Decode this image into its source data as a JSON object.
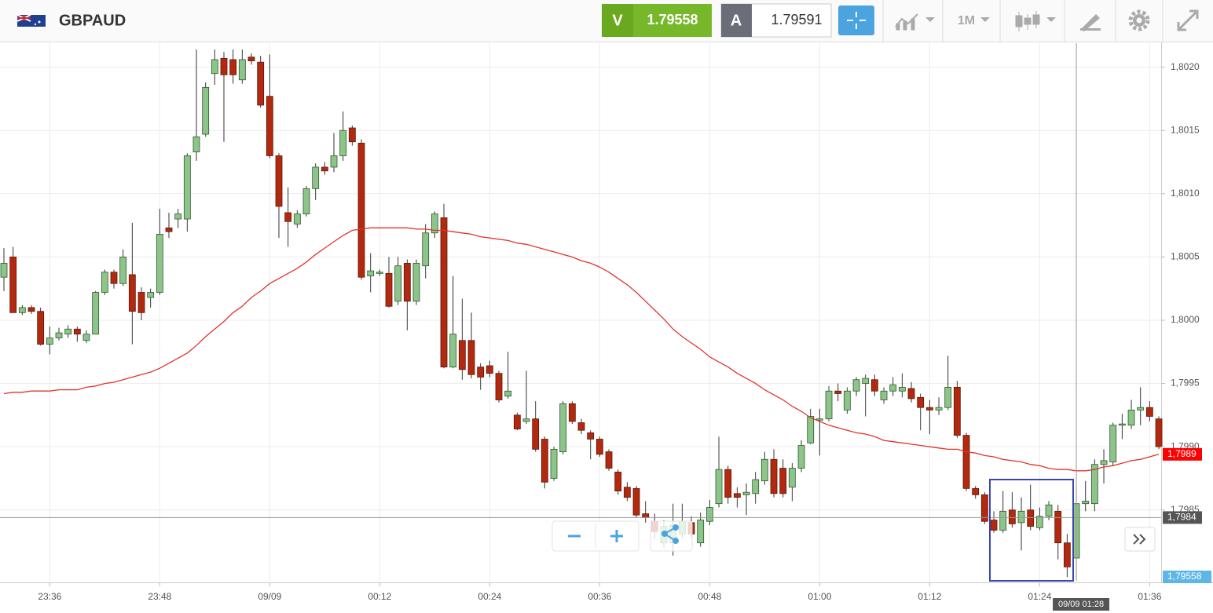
{
  "header": {
    "symbol": "GBPAUD",
    "sell_label": "V",
    "sell_price": "1.79558",
    "buy_label": "A",
    "buy_price": "1.79591",
    "timeframe": "1M"
  },
  "chart_data": {
    "type": "candlestick",
    "categories": [
      null,
      null,
      null,
      null,
      null,
      "23:36",
      null,
      null,
      null,
      null,
      null,
      null,
      null,
      null,
      null,
      null,
      null,
      "23:48",
      null,
      null,
      null,
      null,
      null,
      null,
      null,
      null,
      null,
      null,
      null,
      "09/09",
      null,
      null,
      null,
      null,
      null,
      null,
      null,
      null,
      null,
      null,
      null,
      "00:12",
      null,
      null,
      null,
      null,
      null,
      null,
      null,
      null,
      null,
      null,
      null,
      "00:24",
      null,
      null,
      null,
      null,
      null,
      null,
      null,
      null,
      null,
      null,
      null,
      "00:36",
      null,
      null,
      null,
      null,
      null,
      null,
      null,
      null,
      null,
      null,
      null,
      "00:48",
      null,
      null,
      null,
      null,
      null,
      null,
      null,
      null,
      null,
      null,
      null,
      "01:00",
      null,
      null,
      null,
      null,
      null,
      null,
      null,
      null,
      null,
      null,
      null,
      "01:12",
      null,
      null,
      null,
      null,
      null,
      null,
      null,
      null,
      null,
      null,
      null,
      "01:24",
      null,
      null,
      null,
      null,
      null,
      null,
      null,
      null,
      null,
      null,
      null,
      "01:36",
      null
    ],
    "open": [
      1.80034,
      1.8005,
      1.80006,
      1.8001,
      1.80007,
      1.79981,
      1.79986,
      1.79989,
      1.79993,
      1.79984,
      1.79989,
      1.80022,
      1.80038,
      1.80029,
      1.80036,
      1.80022,
      1.80018,
      1.80022,
      1.80073,
      1.8008,
      1.8008,
      1.80133,
      1.80147,
      1.80195,
      1.80207,
      1.80206,
      1.8019,
      1.80208,
      1.80204,
      1.80177,
      1.8013,
      1.80085,
      1.80076,
      1.80084,
      1.80104,
      1.80121,
      1.80121,
      1.8013,
      1.80152,
      1.8014,
      1.80035,
      1.80037,
      1.80037,
      1.80015,
      1.80045,
      1.80015,
      1.80043,
      1.80069,
      1.80081,
      1.79963,
      1.79984,
      1.79984,
      1.79963,
      1.79964,
      1.79958,
      1.7994,
      1.79925,
      1.7992,
      1.79922,
      1.79906,
      1.79875,
      1.79896,
      1.79934,
      1.79919,
      1.79911,
      1.79906,
      1.79896,
      1.7988,
      1.79868,
      1.79867,
      1.79847,
      1.79841,
      1.79824,
      1.79824,
      1.79831,
      1.7984,
      1.79824,
      1.79841,
      1.79855,
      1.79882,
      1.79863,
      1.79862,
      1.79863,
      1.79873,
      1.7989,
      1.79883,
      1.79868,
      1.79883,
      1.79903,
      1.79921,
      1.79922,
      1.79944,
      1.79929,
      1.79944,
      1.7995,
      1.79953,
      1.79937,
      1.79944,
      1.79944,
      1.79946,
      1.79939,
      1.79931,
      1.79929,
      1.79931,
      1.79947,
      1.79909,
      1.79867,
      1.79862,
      1.79842,
      1.79834,
      1.7985,
      1.7984,
      1.7985,
      1.79836,
      1.79845,
      1.79849,
      1.79824,
      1.79812,
      1.79855,
      1.79855,
      1.79886,
      1.79888,
      1.79917,
      1.79917,
      1.79929,
      1.79931,
      1.79922
    ],
    "high": [
      1.80057,
      1.80058,
      1.80012,
      1.80012,
      1.8001,
      1.79995,
      1.79994,
      1.79996,
      1.79995,
      1.79992,
      1.80023,
      1.8004,
      1.8004,
      1.80056,
      1.80077,
      1.80026,
      1.80025,
      1.80088,
      1.80085,
      1.80088,
      1.80132,
      1.80214,
      1.80188,
      1.80214,
      1.80212,
      1.80214,
      1.80214,
      1.80211,
      1.80209,
      1.8021,
      1.80132,
      1.80105,
      1.80087,
      1.80106,
      1.80124,
      1.80125,
      1.80148,
      1.80165,
      1.80154,
      1.80143,
      1.80053,
      1.8004,
      1.8005,
      1.8005,
      1.80048,
      1.80048,
      1.80076,
      1.80086,
      1.80092,
      1.80035,
      1.80017,
      1.80006,
      1.79966,
      1.79968,
      1.7996,
      1.79975,
      1.79927,
      1.7996,
      1.79936,
      1.79908,
      1.799,
      1.79936,
      1.79936,
      1.79922,
      1.79913,
      1.79908,
      1.79898,
      1.79882,
      1.79872,
      1.79869,
      1.79857,
      1.79847,
      1.79842,
      1.79855,
      1.79855,
      1.79845,
      1.79848,
      1.79858,
      1.79908,
      1.79885,
      1.79868,
      1.79871,
      1.7988,
      1.79896,
      1.79898,
      1.7989,
      1.79887,
      1.79905,
      1.7993,
      1.7993,
      1.79948,
      1.7995,
      1.79947,
      1.79955,
      1.79957,
      1.79957,
      1.79947,
      1.79955,
      1.79958,
      1.79951,
      1.79942,
      1.79937,
      1.79939,
      1.79972,
      1.79952,
      1.79911,
      1.79869,
      1.79864,
      1.79849,
      1.79865,
      1.79864,
      1.7986,
      1.7987,
      1.79852,
      1.79857,
      1.79854,
      1.79831,
      1.79868,
      1.79873,
      1.7989,
      1.79898,
      1.79919,
      1.79926,
      1.79937,
      1.79947,
      1.79936,
      1.79924
    ],
    "low": [
      1.80023,
      1.80006,
      1.80004,
      1.80005,
      1.7998,
      1.79973,
      1.79984,
      1.79986,
      1.79983,
      1.79982,
      1.79989,
      1.8002,
      1.80025,
      1.80027,
      1.79981,
      1.8,
      1.8001,
      1.8002,
      1.80065,
      1.80073,
      1.8007,
      1.80126,
      1.80145,
      1.80186,
      1.80141,
      1.80187,
      1.80187,
      1.80202,
      1.80168,
      1.80128,
      1.80065,
      1.80058,
      1.80073,
      1.80082,
      1.80095,
      1.80115,
      1.80117,
      1.80126,
      1.80138,
      1.80032,
      1.80022,
      1.80035,
      1.8001,
      1.80012,
      1.79992,
      1.80012,
      1.80033,
      1.80065,
      1.79962,
      1.79962,
      1.79953,
      1.79954,
      1.79945,
      1.79955,
      1.79935,
      1.79938,
      1.79913,
      1.79918,
      1.79896,
      1.79867,
      1.79873,
      1.79894,
      1.79918,
      1.7991,
      1.7989,
      1.79892,
      1.79881,
      1.79862,
      1.79857,
      1.79844,
      1.7984,
      1.79827,
      1.7982,
      1.79814,
      1.79828,
      1.79828,
      1.79821,
      1.79838,
      1.79852,
      1.79855,
      1.79852,
      1.79846,
      1.79855,
      1.7987,
      1.7986,
      1.7986,
      1.79857,
      1.7988,
      1.79902,
      1.79893,
      1.7992,
      1.79936,
      1.79926,
      1.7994,
      1.79924,
      1.7994,
      1.79934,
      1.7994,
      1.79939,
      1.79935,
      1.79913,
      1.7991,
      1.79925,
      1.79929,
      1.79907,
      1.79865,
      1.79859,
      1.79839,
      1.79832,
      1.79832,
      1.79836,
      1.79818,
      1.79834,
      1.79834,
      1.79842,
      1.79811,
      1.79797,
      1.79797,
      1.79849,
      1.79849,
      1.79871,
      1.79885,
      1.79906,
      1.79914,
      1.79917,
      1.7992,
      1.79898
    ],
    "close": [
      1.80045,
      1.80006,
      1.8001,
      1.80007,
      1.79981,
      1.79986,
      1.7999,
      1.79993,
      1.79989,
      1.79989,
      1.80022,
      1.80038,
      1.80029,
      1.8005,
      1.80007,
      1.80006,
      1.80022,
      1.80068,
      1.8007,
      1.80084,
      1.8013,
      1.80145,
      1.80184,
      1.80206,
      1.80194,
      1.80194,
      1.80206,
      1.80205,
      1.8017,
      1.8013,
      1.8009,
      1.80078,
      1.80084,
      1.80104,
      1.80121,
      1.80118,
      1.8013,
      1.8015,
      1.80141,
      1.80034,
      1.80039,
      1.80038,
      1.80011,
      1.80043,
      1.80015,
      1.80045,
      1.80069,
      1.80084,
      1.79963,
      1.79989,
      1.79961,
      1.79957,
      1.79955,
      1.79958,
      1.79937,
      1.79944,
      1.79914,
      1.79922,
      1.79898,
      1.79872,
      1.79898,
      1.79934,
      1.7992,
      1.79913,
      1.79906,
      1.79894,
      1.79883,
      1.79865,
      1.7986,
      1.79846,
      1.79844,
      1.79833,
      1.79837,
      1.79838,
      1.79841,
      1.79831,
      1.79842,
      1.79852,
      1.79882,
      1.7986,
      1.7986,
      1.79864,
      1.79874,
      1.7989,
      1.79863,
      1.79863,
      1.79883,
      1.79901,
      1.79924,
      1.79922,
      1.79944,
      1.79942,
      1.79944,
      1.79953,
      1.79954,
      1.79944,
      1.79944,
      1.79949,
      1.79947,
      1.79938,
      1.79931,
      1.79929,
      1.79931,
      1.79947,
      1.79909,
      1.79867,
      1.79862,
      1.79841,
      1.79834,
      1.79849,
      1.79839,
      1.79849,
      1.79837,
      1.79845,
      1.79854,
      1.79824,
      1.79805,
      1.79855,
      1.79857,
      1.79886,
      1.79889,
      1.79917,
      1.79918,
      1.79929,
      1.79931,
      1.79924,
      1.799
    ],
    "up_color": "#8dc48a",
    "down_color": "#b3290f",
    "overlay": {
      "color": "#e3342c",
      "last_label": "1,7989",
      "values": [
        1.79942,
        1.79943,
        1.79943,
        1.79944,
        1.79944,
        1.79944,
        1.79945,
        1.79945,
        1.79945,
        1.79947,
        1.79948,
        1.7995,
        1.79951,
        1.79953,
        1.79955,
        1.79957,
        1.79959,
        1.79962,
        1.79966,
        1.7997,
        1.79974,
        1.7998,
        1.79987,
        1.79993,
        1.79999,
        1.80006,
        1.80011,
        1.80018,
        1.80023,
        1.80029,
        1.80033,
        1.80037,
        1.80041,
        1.80046,
        1.80052,
        1.80057,
        1.80062,
        1.80067,
        1.80071,
        1.80072,
        1.80073,
        1.80073,
        1.80073,
        1.80073,
        1.80073,
        1.80072,
        1.80072,
        1.80071,
        1.80071,
        1.8007,
        1.80069,
        1.80068,
        1.80066,
        1.80065,
        1.80064,
        1.80063,
        1.80061,
        1.8006,
        1.80058,
        1.80056,
        1.80054,
        1.80052,
        1.8005,
        1.80047,
        1.80045,
        1.80042,
        1.80038,
        1.80033,
        1.80028,
        1.80022,
        1.80015,
        1.80008,
        1.80001,
        1.79993,
        1.79987,
        1.79982,
        1.79977,
        1.79971,
        1.79967,
        1.79963,
        1.79958,
        1.79954,
        1.7995,
        1.79945,
        1.79941,
        1.79937,
        1.79932,
        1.79928,
        1.79923,
        1.7992,
        1.79917,
        1.79915,
        1.79913,
        1.79911,
        1.7991,
        1.79908,
        1.79905,
        1.79904,
        1.79903,
        1.79902,
        1.79901,
        1.799,
        1.79899,
        1.79898,
        1.79898,
        1.79896,
        1.79895,
        1.79893,
        1.79892,
        1.7989,
        1.79889,
        1.79888,
        1.79886,
        1.79885,
        1.79883,
        1.79882,
        1.79882,
        1.79881,
        1.79881,
        1.79882,
        1.79884,
        1.79885,
        1.79887,
        1.79889,
        1.7989,
        1.79892,
        1.79894
      ]
    },
    "crosshair": {
      "x_index": 117,
      "label": "09/09 01:28",
      "price": {
        "value": 1.79844,
        "label": "1,7984"
      }
    },
    "bid_label": "1,79558",
    "ylim": [
      1.79794,
      1.80219
    ],
    "yticks": [
      {
        "value": 1.7985,
        "label": "1,7985"
      },
      {
        "value": 1.799,
        "label": "1,7990"
      },
      {
        "value": 1.7995,
        "label": "1,7995"
      },
      {
        "value": 1.8,
        "label": "1,8000"
      },
      {
        "value": 1.8005,
        "label": "1,8005"
      },
      {
        "value": 1.801,
        "label": "1,8010"
      },
      {
        "value": 1.8015,
        "label": "1,8015"
      },
      {
        "value": 1.802,
        "label": "1,8020"
      }
    ],
    "grid": true
  }
}
